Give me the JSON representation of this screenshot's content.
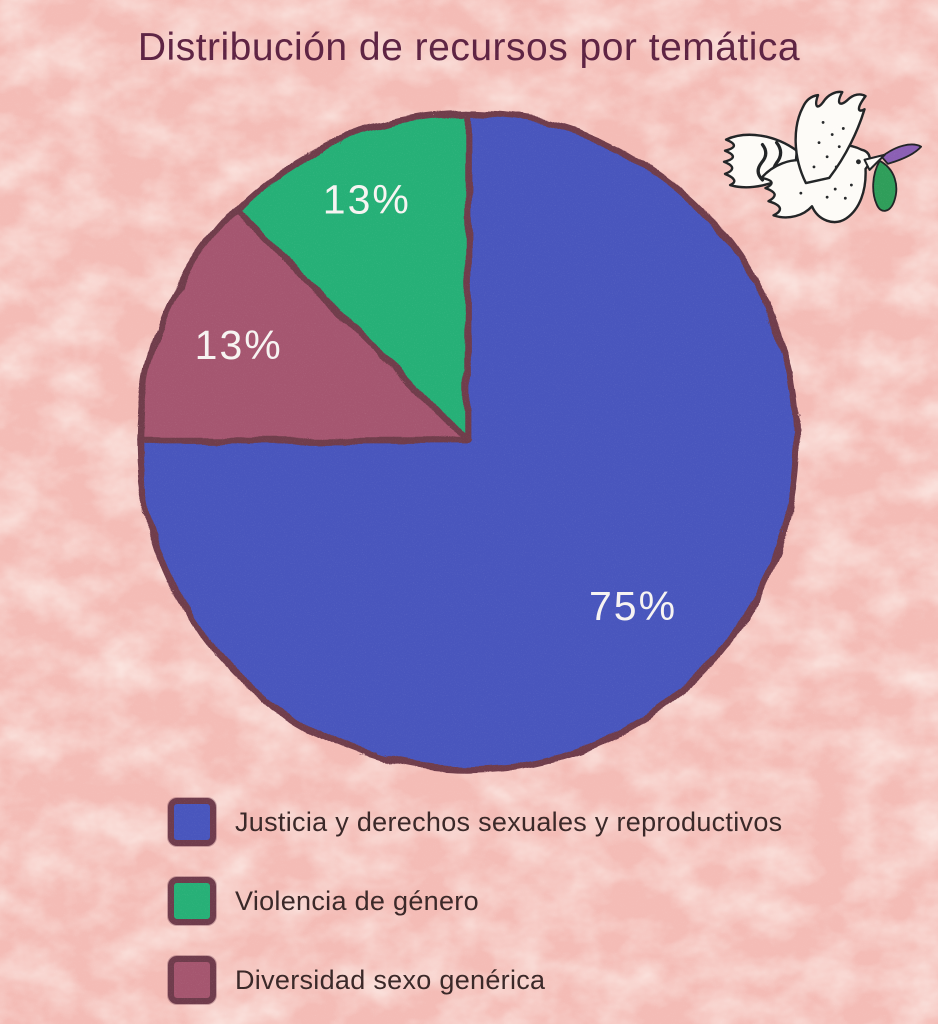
{
  "title": "Distribución de recursos por temática",
  "chart_data": {
    "type": "pie",
    "title": "Distribución de recursos por temática",
    "categories": [
      "Justicia y derechos sexuales y reproductivos",
      "Diversidad sexo genérica",
      "Violencia de género"
    ],
    "values": [
      75,
      13,
      13
    ],
    "slices": [
      {
        "label": "Justicia y derechos sexuales y reproductivos",
        "value_pct": 75,
        "fraction": 0.75,
        "color": "#4956bd",
        "label_text": "75%",
        "label_r": 0.72
      },
      {
        "label": "Diversidad sexo genérica",
        "value_pct": 13,
        "fraction": 0.125,
        "color": "#a5566f",
        "label_text": "13%",
        "label_r": 0.75
      },
      {
        "label": "Violencia de género",
        "value_pct": 13,
        "fraction": 0.125,
        "color": "#27b077",
        "label_text": "13%",
        "label_r": 0.79
      }
    ],
    "start_angle_deg": 0,
    "direction": "clockwise",
    "label_color": "#f7f4f2",
    "outline_color": "#6f3c4c",
    "legend_position": "bottom-left",
    "grid": false
  },
  "legend": {
    "items": [
      {
        "label": "Justicia y derechos sexuales y reproductivos",
        "color": "#4956bd"
      },
      {
        "label": "Violencia de género",
        "color": "#27b077"
      },
      {
        "label": "Diversidad sexo genérica",
        "color": "#a5566f"
      }
    ]
  },
  "decoration": {
    "dove_icon": "white dove carrying green and purple ribbon"
  },
  "colors": {
    "background": "#f4bcb6",
    "background_mottle": "#fadbd4",
    "title": "#5e2443",
    "legend_text": "#3a2828",
    "outline": "#6f3c4c",
    "scarf_green": "#2f9e5a",
    "ribbon_purple": "#8b5fb4"
  }
}
